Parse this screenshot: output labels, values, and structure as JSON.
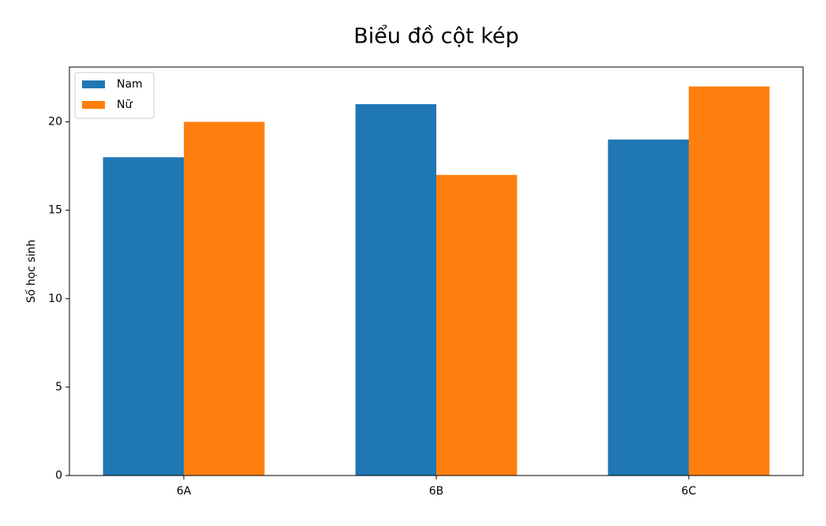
{
  "chart_data": {
    "type": "bar",
    "title": "Biểu đồ cột kép",
    "y_label": "Số học sinh",
    "categories": [
      "6A",
      "6B",
      "6C"
    ],
    "series": [
      {
        "name": "Nam",
        "color": "#1f77b4",
        "values": [
          18,
          21,
          19
        ]
      },
      {
        "name": "Nữ",
        "color": "#ff7f0e",
        "values": [
          20,
          17,
          22
        ]
      }
    ],
    "ylim": [
      0,
      23.1
    ],
    "yticks": [
      0,
      5,
      10,
      15,
      20
    ],
    "grid": false,
    "legend": "upper left"
  }
}
